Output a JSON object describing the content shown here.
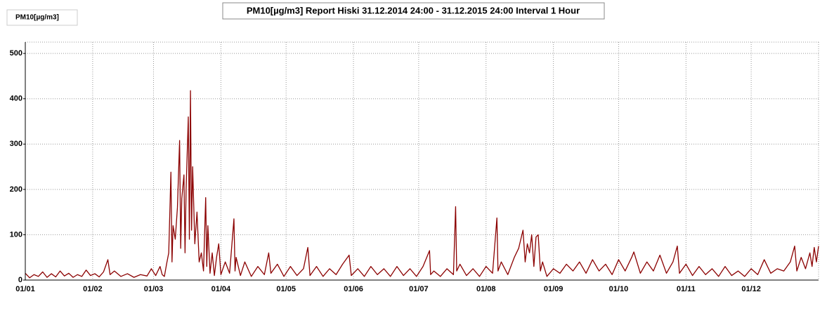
{
  "chart_data": {
    "type": "line",
    "title": "PM10[µg/m3] Report Hiski 31.12.2014 24:00 - 31.12.2015 24:00 Interval 1 Hour",
    "y_label": "PM10[µg/m3]",
    "color": "#8b0000",
    "grid": true,
    "xlim": [
      0,
      365
    ],
    "ylim": [
      0,
      525
    ],
    "yticks": [
      0,
      100,
      200,
      300,
      400,
      500
    ],
    "xticks": [
      {
        "value": 0,
        "label": "01/01"
      },
      {
        "value": 31,
        "label": "01/02"
      },
      {
        "value": 59,
        "label": "01/03"
      },
      {
        "value": 90,
        "label": "01/04"
      },
      {
        "value": 120,
        "label": "01/05"
      },
      {
        "value": 151,
        "label": "01/06"
      },
      {
        "value": 181,
        "label": "01/07"
      },
      {
        "value": 212,
        "label": "01/08"
      },
      {
        "value": 243,
        "label": "01/09"
      },
      {
        "value": 273,
        "label": "01/10"
      },
      {
        "value": 304,
        "label": "01/11"
      },
      {
        "value": 334,
        "label": "01/12"
      }
    ],
    "x": [
      0,
      2,
      4,
      6,
      8,
      10,
      12,
      14,
      16,
      18,
      20,
      22,
      24,
      26,
      28,
      30,
      32,
      34,
      36,
      38,
      39,
      41,
      44,
      47,
      50,
      53,
      56,
      58,
      60,
      62,
      63,
      64,
      65,
      66,
      67,
      67.5,
      68,
      69,
      70,
      71,
      71.5,
      72,
      73,
      73.5,
      74,
      75,
      75.5,
      76,
      76.5,
      77,
      78,
      79,
      80,
      81,
      82,
      83,
      83.5,
      84,
      85,
      86,
      87,
      88,
      89,
      90,
      92,
      94,
      96,
      96.5,
      97,
      99,
      101,
      104,
      107,
      110,
      112,
      113,
      116,
      119,
      122,
      125,
      128,
      130,
      131,
      134,
      137,
      140,
      143,
      146,
      149,
      150,
      153,
      156,
      159,
      162,
      165,
      168,
      171,
      174,
      177,
      180,
      183,
      186,
      186.5,
      188,
      191,
      194,
      197,
      198,
      198.5,
      200,
      203,
      206,
      209,
      212,
      215,
      217,
      217.5,
      219,
      222,
      225,
      227,
      229,
      230,
      231,
      232,
      233,
      234,
      235,
      236,
      237,
      238,
      240,
      243,
      246,
      249,
      252,
      255,
      258,
      261,
      264,
      267,
      270,
      273,
      276,
      279,
      280,
      283,
      286,
      289,
      292,
      295,
      298,
      300,
      301,
      304,
      307,
      310,
      313,
      316,
      319,
      322,
      325,
      328,
      331,
      334,
      337,
      340,
      343,
      346,
      349,
      352,
      354,
      355,
      357,
      359,
      361,
      362,
      363,
      364,
      365
    ],
    "values": [
      15,
      5,
      12,
      8,
      18,
      6,
      14,
      7,
      20,
      9,
      15,
      6,
      12,
      8,
      22,
      10,
      14,
      7,
      18,
      45,
      12,
      20,
      8,
      14,
      6,
      12,
      9,
      25,
      10,
      30,
      12,
      8,
      35,
      60,
      238,
      40,
      120,
      90,
      160,
      308,
      70,
      180,
      232,
      60,
      200,
      360,
      90,
      418,
      110,
      250,
      80,
      150,
      40,
      60,
      20,
      182,
      30,
      120,
      15,
      60,
      10,
      50,
      80,
      12,
      40,
      15,
      135,
      20,
      50,
      10,
      40,
      8,
      30,
      12,
      60,
      15,
      35,
      8,
      30,
      10,
      25,
      72,
      10,
      30,
      8,
      25,
      12,
      35,
      55,
      10,
      25,
      8,
      30,
      12,
      25,
      8,
      30,
      10,
      25,
      8,
      30,
      65,
      12,
      20,
      8,
      25,
      12,
      162,
      20,
      35,
      10,
      25,
      8,
      30,
      15,
      137,
      20,
      40,
      12,
      50,
      70,
      110,
      40,
      80,
      60,
      100,
      30,
      95,
      100,
      20,
      40,
      8,
      25,
      15,
      35,
      20,
      40,
      15,
      45,
      20,
      35,
      12,
      45,
      20,
      50,
      62,
      15,
      40,
      20,
      55,
      15,
      40,
      75,
      15,
      35,
      10,
      30,
      12,
      25,
      8,
      30,
      10,
      20,
      8,
      25,
      12,
      45,
      15,
      25,
      20,
      40,
      75,
      20,
      50,
      25,
      60,
      30,
      72,
      40,
      75
    ]
  }
}
